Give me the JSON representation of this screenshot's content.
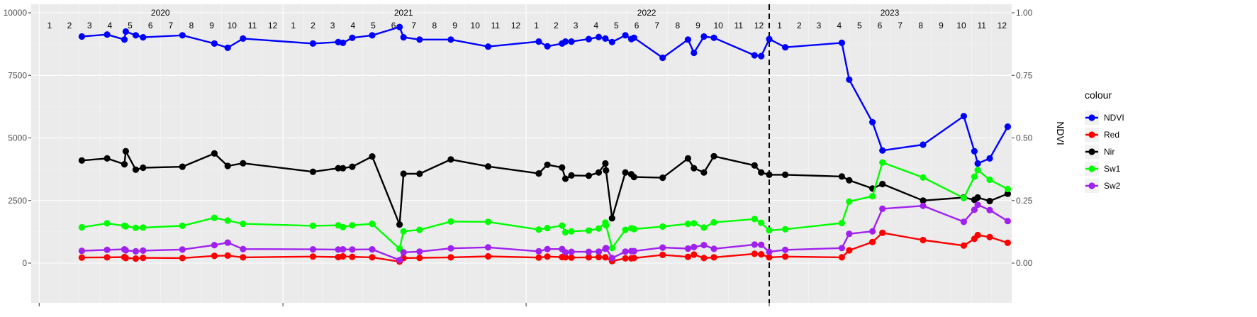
{
  "chart_data": {
    "type": "line",
    "title": "",
    "xlabel": "",
    "ylabel_left": "",
    "ylabel_right": "NDVI",
    "xlim": [
      "2019-12-20",
      "2023-12-31"
    ],
    "ylim_left": [
      0,
      10000
    ],
    "ylim_right": [
      0,
      1
    ],
    "left_ticks": [
      "0",
      "2500",
      "5000",
      "7500",
      "10000"
    ],
    "right_ticks": [
      "0.00",
      "0.25",
      "0.50",
      "0.75",
      "1.00"
    ],
    "year_labels": [
      "2020",
      "2021",
      "2022",
      "2023"
    ],
    "month_labels": [
      "1",
      "2",
      "3",
      "4",
      "5",
      "6",
      "7",
      "8",
      "9",
      "10",
      "11",
      "12"
    ],
    "vline_date": "2023-01-01",
    "legend": {
      "title": "colour",
      "position": "right"
    },
    "grid": true,
    "series": [
      {
        "name": "NDVI",
        "color": "#0000ff",
        "axis": "right",
        "points": [
          [
            "2020-03-05",
            0.905
          ],
          [
            "2020-04-12",
            0.913
          ],
          [
            "2020-05-08",
            0.893
          ],
          [
            "2020-05-10",
            0.925
          ],
          [
            "2020-05-25",
            0.91
          ],
          [
            "2020-06-05",
            0.902
          ],
          [
            "2020-08-03",
            0.91
          ],
          [
            "2020-09-20",
            0.877
          ],
          [
            "2020-10-10",
            0.86
          ],
          [
            "2020-11-02",
            0.897
          ],
          [
            "2021-02-15",
            0.877
          ],
          [
            "2021-03-25",
            0.883
          ],
          [
            "2021-04-01",
            0.88
          ],
          [
            "2021-04-15",
            0.9
          ],
          [
            "2021-05-15",
            0.91
          ],
          [
            "2021-06-25",
            0.943
          ],
          [
            "2021-07-01",
            0.902
          ],
          [
            "2021-07-25",
            0.893
          ],
          [
            "2021-09-10",
            0.893
          ],
          [
            "2021-11-05",
            0.865
          ],
          [
            "2022-01-20",
            0.885
          ],
          [
            "2022-02-02",
            0.866
          ],
          [
            "2022-02-24",
            0.877
          ],
          [
            "2022-03-01",
            0.885
          ],
          [
            "2022-03-10",
            0.885
          ],
          [
            "2022-04-05",
            0.895
          ],
          [
            "2022-04-20",
            0.903
          ],
          [
            "2022-04-30",
            0.897
          ],
          [
            "2022-05-10",
            0.883
          ],
          [
            "2022-05-30",
            0.91
          ],
          [
            "2022-06-08",
            0.895
          ],
          [
            "2022-06-12",
            0.9
          ],
          [
            "2022-07-25",
            0.82
          ],
          [
            "2022-09-01",
            0.893
          ],
          [
            "2022-09-10",
            0.84
          ],
          [
            "2022-09-25",
            0.905
          ],
          [
            "2022-10-10",
            0.9
          ],
          [
            "2022-12-10",
            0.83
          ],
          [
            "2022-12-20",
            0.827
          ],
          [
            "2023-01-01",
            0.895
          ],
          [
            "2023-01-25",
            0.862
          ],
          [
            "2023-04-20",
            0.88
          ],
          [
            "2023-05-01",
            0.733
          ],
          [
            "2023-06-05",
            0.563
          ],
          [
            "2023-06-20",
            0.45
          ],
          [
            "2023-08-20",
            0.473
          ],
          [
            "2023-10-20",
            0.587
          ],
          [
            "2023-11-05",
            0.447
          ],
          [
            "2023-11-10",
            0.398
          ],
          [
            "2023-11-28",
            0.418
          ],
          [
            "2023-12-25",
            0.545
          ]
        ]
      },
      {
        "name": "Red",
        "color": "#ff0000",
        "axis": "left",
        "points": [
          [
            "2020-03-05",
            220
          ],
          [
            "2020-04-12",
            230
          ],
          [
            "2020-05-08",
            240
          ],
          [
            "2020-05-10",
            200
          ],
          [
            "2020-05-25",
            180
          ],
          [
            "2020-06-05",
            210
          ],
          [
            "2020-08-03",
            200
          ],
          [
            "2020-09-20",
            290
          ],
          [
            "2020-10-10",
            300
          ],
          [
            "2020-11-02",
            230
          ],
          [
            "2021-02-15",
            260
          ],
          [
            "2021-03-25",
            240
          ],
          [
            "2021-04-01",
            270
          ],
          [
            "2021-04-15",
            250
          ],
          [
            "2021-05-15",
            230
          ],
          [
            "2021-06-25",
            60
          ],
          [
            "2021-07-01",
            200
          ],
          [
            "2021-07-25",
            210
          ],
          [
            "2021-09-10",
            230
          ],
          [
            "2021-11-05",
            270
          ],
          [
            "2022-01-20",
            220
          ],
          [
            "2022-02-02",
            260
          ],
          [
            "2022-02-24",
            240
          ],
          [
            "2022-03-01",
            230
          ],
          [
            "2022-03-10",
            220
          ],
          [
            "2022-04-05",
            230
          ],
          [
            "2022-04-20",
            240
          ],
          [
            "2022-04-30",
            230
          ],
          [
            "2022-05-10",
            80
          ],
          [
            "2022-05-30",
            190
          ],
          [
            "2022-06-08",
            190
          ],
          [
            "2022-06-12",
            200
          ],
          [
            "2022-07-25",
            330
          ],
          [
            "2022-09-01",
            250
          ],
          [
            "2022-09-10",
            340
          ],
          [
            "2022-09-25",
            200
          ],
          [
            "2022-10-10",
            230
          ],
          [
            "2022-12-10",
            370
          ],
          [
            "2022-12-20",
            350
          ],
          [
            "2023-01-01",
            230
          ],
          [
            "2023-01-25",
            260
          ],
          [
            "2023-04-20",
            230
          ],
          [
            "2023-05-01",
            510
          ],
          [
            "2023-06-05",
            840
          ],
          [
            "2023-06-20",
            1210
          ],
          [
            "2023-08-20",
            920
          ],
          [
            "2023-10-20",
            700
          ],
          [
            "2023-11-05",
            970
          ],
          [
            "2023-11-10",
            1120
          ],
          [
            "2023-11-28",
            1040
          ],
          [
            "2023-12-25",
            810
          ]
        ]
      },
      {
        "name": "Nir",
        "color": "#000000",
        "axis": "left",
        "points": [
          [
            "2020-03-05",
            4100
          ],
          [
            "2020-04-12",
            4180
          ],
          [
            "2020-05-08",
            3950
          ],
          [
            "2020-05-10",
            4470
          ],
          [
            "2020-05-25",
            3730
          ],
          [
            "2020-06-05",
            3810
          ],
          [
            "2020-08-03",
            3850
          ],
          [
            "2020-09-20",
            4380
          ],
          [
            "2020-10-10",
            3880
          ],
          [
            "2020-11-02",
            3990
          ],
          [
            "2021-02-15",
            3650
          ],
          [
            "2021-03-25",
            3790
          ],
          [
            "2021-04-01",
            3790
          ],
          [
            "2021-04-15",
            3850
          ],
          [
            "2021-05-15",
            4260
          ],
          [
            "2021-06-25",
            1540
          ],
          [
            "2021-07-01",
            3570
          ],
          [
            "2021-07-25",
            3570
          ],
          [
            "2021-09-10",
            4140
          ],
          [
            "2021-11-05",
            3860
          ],
          [
            "2022-01-20",
            3580
          ],
          [
            "2022-02-02",
            3930
          ],
          [
            "2022-02-24",
            3820
          ],
          [
            "2022-03-01",
            3370
          ],
          [
            "2022-03-10",
            3500
          ],
          [
            "2022-04-05",
            3490
          ],
          [
            "2022-04-20",
            3620
          ],
          [
            "2022-04-30",
            3980
          ],
          [
            "2022-05-01",
            3700
          ],
          [
            "2022-05-10",
            1790
          ],
          [
            "2022-05-30",
            3620
          ],
          [
            "2022-06-08",
            3550
          ],
          [
            "2022-06-12",
            3440
          ],
          [
            "2022-07-25",
            3410
          ],
          [
            "2022-09-01",
            4180
          ],
          [
            "2022-09-10",
            3790
          ],
          [
            "2022-09-25",
            3620
          ],
          [
            "2022-10-10",
            4270
          ],
          [
            "2022-12-10",
            3900
          ],
          [
            "2022-12-20",
            3620
          ],
          [
            "2023-01-01",
            3530
          ],
          [
            "2023-01-25",
            3530
          ],
          [
            "2023-04-20",
            3460
          ],
          [
            "2023-05-01",
            3310
          ],
          [
            "2023-06-05",
            2980
          ],
          [
            "2023-06-20",
            3160
          ],
          [
            "2023-08-20",
            2500
          ],
          [
            "2023-10-20",
            2620
          ],
          [
            "2023-11-05",
            2530
          ],
          [
            "2023-11-10",
            2620
          ],
          [
            "2023-11-28",
            2480
          ],
          [
            "2023-12-25",
            2770
          ]
        ]
      },
      {
        "name": "Sw1",
        "color": "#00ff00",
        "axis": "left",
        "points": [
          [
            "2020-03-05",
            1430
          ],
          [
            "2020-04-12",
            1590
          ],
          [
            "2020-05-08",
            1490
          ],
          [
            "2020-05-10",
            1470
          ],
          [
            "2020-05-25",
            1410
          ],
          [
            "2020-06-05",
            1420
          ],
          [
            "2020-08-03",
            1490
          ],
          [
            "2020-09-20",
            1810
          ],
          [
            "2020-10-10",
            1700
          ],
          [
            "2020-11-02",
            1570
          ],
          [
            "2021-02-15",
            1490
          ],
          [
            "2021-03-25",
            1510
          ],
          [
            "2021-04-01",
            1440
          ],
          [
            "2021-04-15",
            1510
          ],
          [
            "2021-05-15",
            1570
          ],
          [
            "2021-06-25",
            570
          ],
          [
            "2021-07-01",
            1270
          ],
          [
            "2021-07-25",
            1330
          ],
          [
            "2021-09-10",
            1660
          ],
          [
            "2021-11-05",
            1650
          ],
          [
            "2022-01-20",
            1340
          ],
          [
            "2022-02-02",
            1400
          ],
          [
            "2022-02-24",
            1500
          ],
          [
            "2022-03-01",
            1230
          ],
          [
            "2022-03-10",
            1270
          ],
          [
            "2022-04-05",
            1300
          ],
          [
            "2022-04-20",
            1380
          ],
          [
            "2022-04-30",
            1620
          ],
          [
            "2022-05-01",
            1510
          ],
          [
            "2022-05-10",
            600
          ],
          [
            "2022-05-30",
            1330
          ],
          [
            "2022-06-08",
            1390
          ],
          [
            "2022-06-12",
            1360
          ],
          [
            "2022-07-25",
            1460
          ],
          [
            "2022-09-01",
            1570
          ],
          [
            "2022-09-10",
            1590
          ],
          [
            "2022-09-25",
            1420
          ],
          [
            "2022-10-10",
            1630
          ],
          [
            "2022-12-10",
            1760
          ],
          [
            "2022-12-20",
            1610
          ],
          [
            "2023-01-01",
            1310
          ],
          [
            "2023-01-25",
            1350
          ],
          [
            "2023-04-20",
            1600
          ],
          [
            "2023-05-01",
            2460
          ],
          [
            "2023-06-05",
            2670
          ],
          [
            "2023-06-20",
            4020
          ],
          [
            "2023-08-20",
            3420
          ],
          [
            "2023-10-20",
            2600
          ],
          [
            "2023-11-05",
            3450
          ],
          [
            "2023-11-10",
            3720
          ],
          [
            "2023-11-28",
            3330
          ],
          [
            "2023-12-25",
            2960
          ]
        ]
      },
      {
        "name": "Sw2",
        "color": "#a020f0",
        "axis": "left",
        "points": [
          [
            "2020-03-05",
            490
          ],
          [
            "2020-04-12",
            530
          ],
          [
            "2020-05-08",
            550
          ],
          [
            "2020-05-10",
            510
          ],
          [
            "2020-05-25",
            470
          ],
          [
            "2020-06-05",
            500
          ],
          [
            "2020-08-03",
            540
          ],
          [
            "2020-09-20",
            720
          ],
          [
            "2020-10-10",
            820
          ],
          [
            "2020-11-02",
            560
          ],
          [
            "2021-02-15",
            550
          ],
          [
            "2021-03-25",
            540
          ],
          [
            "2021-04-01",
            550
          ],
          [
            "2021-04-15",
            540
          ],
          [
            "2021-05-15",
            550
          ],
          [
            "2021-06-25",
            120
          ],
          [
            "2021-07-01",
            430
          ],
          [
            "2021-07-25",
            460
          ],
          [
            "2021-09-10",
            590
          ],
          [
            "2021-11-05",
            630
          ],
          [
            "2022-01-20",
            470
          ],
          [
            "2022-02-02",
            560
          ],
          [
            "2022-02-24",
            560
          ],
          [
            "2022-03-01",
            430
          ],
          [
            "2022-03-10",
            450
          ],
          [
            "2022-04-05",
            450
          ],
          [
            "2022-04-20",
            460
          ],
          [
            "2022-04-30",
            570
          ],
          [
            "2022-05-01",
            600
          ],
          [
            "2022-05-10",
            200
          ],
          [
            "2022-05-30",
            460
          ],
          [
            "2022-06-08",
            480
          ],
          [
            "2022-06-12",
            480
          ],
          [
            "2022-07-25",
            620
          ],
          [
            "2022-09-01",
            580
          ],
          [
            "2022-09-10",
            640
          ],
          [
            "2022-09-25",
            720
          ],
          [
            "2022-10-10",
            570
          ],
          [
            "2022-12-10",
            740
          ],
          [
            "2022-12-20",
            730
          ],
          [
            "2023-01-01",
            450
          ],
          [
            "2023-01-25",
            530
          ],
          [
            "2023-04-20",
            600
          ],
          [
            "2023-05-01",
            1170
          ],
          [
            "2023-06-05",
            1270
          ],
          [
            "2023-06-20",
            2170
          ],
          [
            "2023-08-20",
            2290
          ],
          [
            "2023-10-20",
            1650
          ],
          [
            "2023-11-05",
            2130
          ],
          [
            "2023-11-10",
            2330
          ],
          [
            "2023-11-28",
            2120
          ],
          [
            "2023-12-25",
            1680
          ]
        ]
      }
    ]
  }
}
